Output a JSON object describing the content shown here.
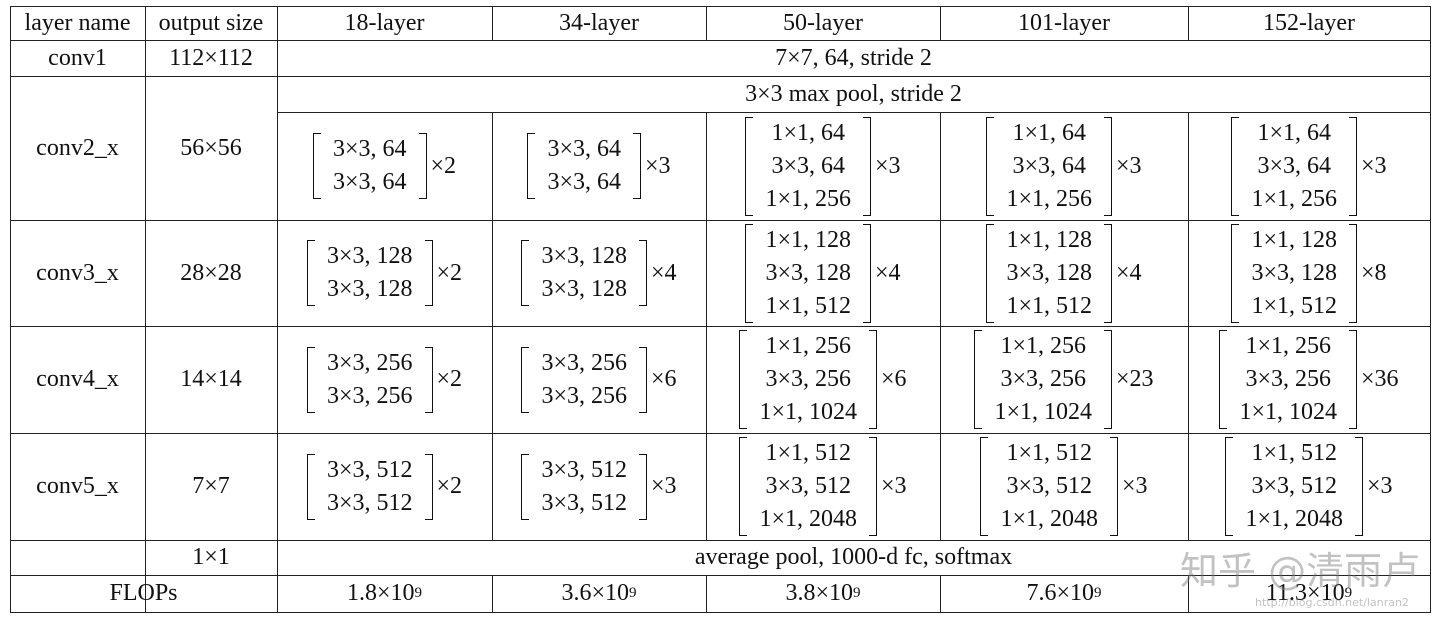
{
  "header": [
    "layer name",
    "output size",
    "18-layer",
    "34-layer",
    "50-layer",
    "101-layer",
    "152-layer"
  ],
  "rows": [
    {
      "name": "conv1",
      "size": "112×112",
      "span": "7×7, 64, stride 2"
    },
    {
      "name": "conv2_x",
      "size": "56×56",
      "span": "3×3 max pool, stride 2",
      "blocks": [
        {
          "lines": [
            "3×3, 64",
            "3×3, 64"
          ],
          "times": "×2"
        },
        {
          "lines": [
            "3×3, 64",
            "3×3, 64"
          ],
          "times": "×3"
        },
        {
          "lines": [
            "1×1, 64",
            "3×3, 64",
            "1×1, 256"
          ],
          "times": "×3"
        },
        {
          "lines": [
            "1×1, 64",
            "3×3, 64",
            "1×1, 256"
          ],
          "times": "×3"
        },
        {
          "lines": [
            "1×1, 64",
            "3×3, 64",
            "1×1, 256"
          ],
          "times": "×3"
        }
      ]
    },
    {
      "name": "conv3_x",
      "size": "28×28",
      "blocks": [
        {
          "lines": [
            "3×3, 128",
            "3×3, 128"
          ],
          "times": "×2"
        },
        {
          "lines": [
            "3×3, 128",
            "3×3, 128"
          ],
          "times": "×4"
        },
        {
          "lines": [
            "1×1, 128",
            "3×3, 128",
            "1×1, 512"
          ],
          "times": "×4"
        },
        {
          "lines": [
            "1×1, 128",
            "3×3, 128",
            "1×1, 512"
          ],
          "times": "×4"
        },
        {
          "lines": [
            "1×1, 128",
            "3×3, 128",
            "1×1, 512"
          ],
          "times": "×8"
        }
      ]
    },
    {
      "name": "conv4_x",
      "size": "14×14",
      "blocks": [
        {
          "lines": [
            "3×3, 256",
            "3×3, 256"
          ],
          "times": "×2"
        },
        {
          "lines": [
            "3×3, 256",
            "3×3, 256"
          ],
          "times": "×6"
        },
        {
          "lines": [
            "1×1, 256",
            "3×3, 256",
            "1×1, 1024"
          ],
          "times": "×6"
        },
        {
          "lines": [
            "1×1, 256",
            "3×3, 256",
            "1×1, 1024"
          ],
          "times": "×23"
        },
        {
          "lines": [
            "1×1, 256",
            "3×3, 256",
            "1×1, 1024"
          ],
          "times": "×36"
        }
      ]
    },
    {
      "name": "conv5_x",
      "size": "7×7",
      "blocks": [
        {
          "lines": [
            "3×3, 512",
            "3×3, 512"
          ],
          "times": "×2"
        },
        {
          "lines": [
            "3×3, 512",
            "3×3, 512"
          ],
          "times": "×3"
        },
        {
          "lines": [
            "1×1, 512",
            "3×3, 512",
            "1×1, 2048"
          ],
          "times": "×3"
        },
        {
          "lines": [
            "1×1, 512",
            "3×3, 512",
            "1×1, 2048"
          ],
          "times": "×3"
        },
        {
          "lines": [
            "1×1, 512",
            "3×3, 512",
            "1×1, 2048"
          ],
          "times": "×3"
        }
      ]
    },
    {
      "size": "1×1",
      "span": "average pool, 1000-d fc, softmax"
    }
  ],
  "flops": {
    "label": "FLOPs",
    "values": [
      {
        "base": "1.8×10",
        "exp": "9"
      },
      {
        "base": "3.6×10",
        "exp": "9"
      },
      {
        "base": "3.8×10",
        "exp": "9"
      },
      {
        "base": "7.6×10",
        "exp": "9"
      },
      {
        "base": "11.3×10",
        "exp": "9"
      }
    ]
  },
  "watermark": {
    "brand": "知乎 @清雨卢",
    "url": "http://blog.csdn.net/lanran2"
  }
}
